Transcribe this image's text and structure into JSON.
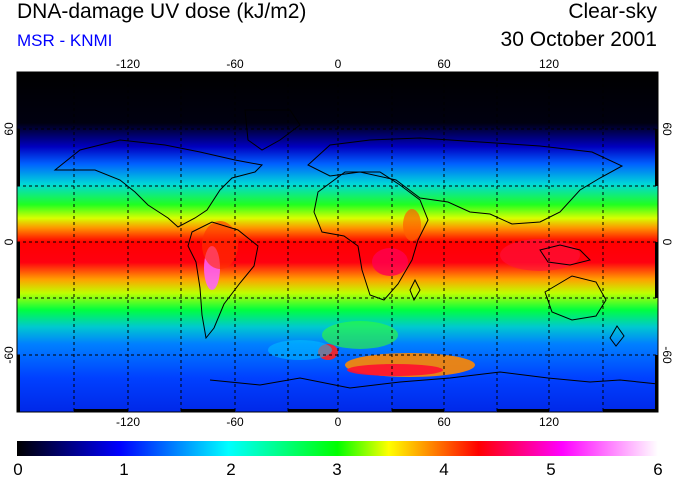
{
  "header": {
    "title": "DNA-damage UV dose (kJ/m2)",
    "source": "MSR - KNMI",
    "condition": "Clear-sky",
    "date": "30 October 2001"
  },
  "map": {
    "type": "global UV dose map",
    "projection": "equirectangular",
    "lon_range": [
      -180,
      180
    ],
    "lat_range": [
      -90,
      90
    ],
    "lon_tick_labels": [
      "-120",
      "-60",
      "0",
      "60",
      "120"
    ],
    "lat_tick_labels": [
      "60",
      "0",
      "-60"
    ],
    "grid_style": "dashed"
  },
  "colorbar": {
    "range": [
      0,
      6
    ],
    "tick_labels": [
      "0",
      "1",
      "2",
      "3",
      "4",
      "5",
      "6"
    ],
    "colors": [
      "#000000",
      "#0000ff",
      "#00ffff",
      "#00ff00",
      "#ffff00",
      "#ff0000",
      "#ff00ff",
      "#ffffff"
    ]
  }
}
